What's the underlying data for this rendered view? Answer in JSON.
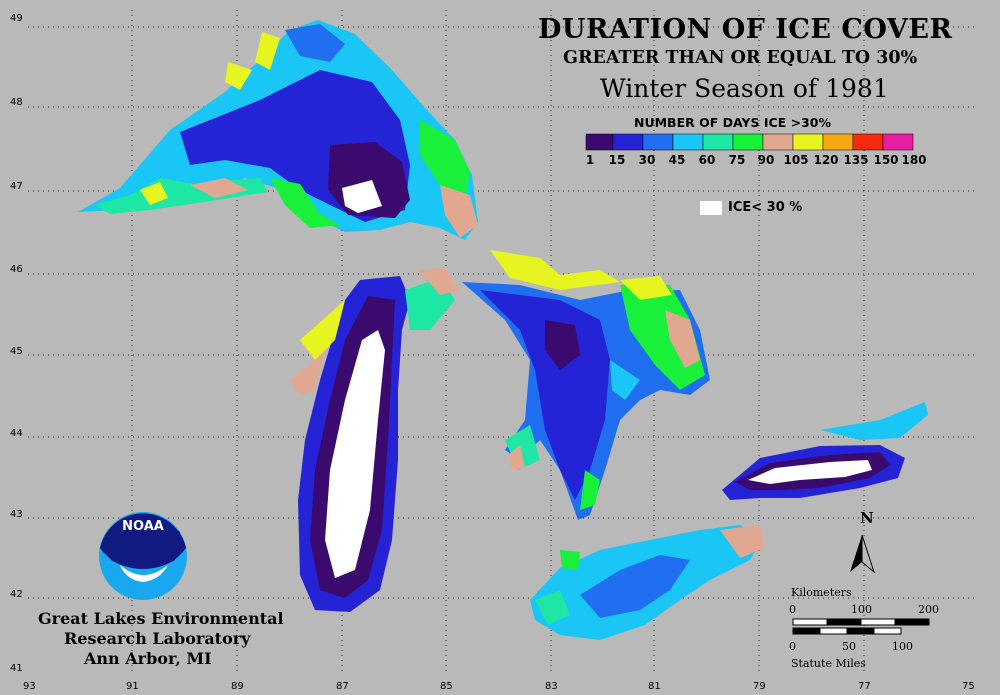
{
  "title": {
    "line1": "DURATION OF ICE COVER",
    "line2": "GREATER THAN OR EQUAL TO 30%",
    "line3": "Winter Season of 1981"
  },
  "legend": {
    "title": "NUMBER OF DAYS ICE >30%",
    "breaks": [
      "1",
      "15",
      "30",
      "45",
      "60",
      "75",
      "90",
      "105",
      "120",
      "135",
      "150",
      "180"
    ],
    "colors": [
      "#3a0a6e",
      "#2424d6",
      "#1f6ff0",
      "#19c6f5",
      "#1ee6a4",
      "#18f03a",
      "#e0a890",
      "#e6f520",
      "#f5a812",
      "#f52a0e",
      "#e61ea0"
    ],
    "ice_label": "ICE< 30 %",
    "ice_color": "#ffffff"
  },
  "axes": {
    "longitude_ticks": [
      "93",
      "91",
      "89",
      "87",
      "85",
      "83",
      "81",
      "79",
      "77",
      "75"
    ],
    "latitude_ticks": [
      "49",
      "48",
      "47",
      "46",
      "45",
      "44",
      "43",
      "42",
      "41"
    ]
  },
  "north_arrow": "N",
  "scale": {
    "km_label": "Kilometers",
    "km_ticks": [
      "0",
      "100",
      "200"
    ],
    "mi_ticks": [
      "0",
      "50",
      "100"
    ],
    "mi_label": "Statute Miles"
  },
  "logo": {
    "text": "NOAA"
  },
  "lab": {
    "line1": "Great Lakes Environmental",
    "line2": "Research Laboratory",
    "line3": "Ann Arbor, MI"
  }
}
